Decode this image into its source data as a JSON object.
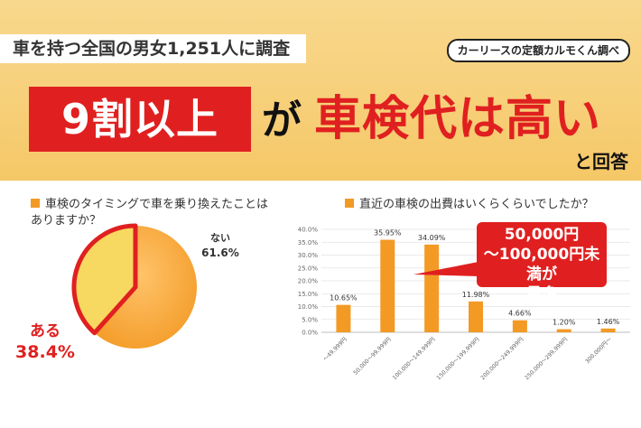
{
  "header": {
    "survey": "車を持つ全国の男女1,251人に調査",
    "source": "カーリースの定額カルモくん調べ",
    "headline_box": "9割以上",
    "headline_particle": "が",
    "headline_red": "車検代は高い",
    "headline_suffix": "と回答"
  },
  "colors": {
    "red": "#e02020",
    "orange": "#f39a25",
    "pie_yellow": "#f7d860",
    "banner": "#f7cf78"
  },
  "chart_data": [
    {
      "type": "pie",
      "title": "車検のタイミングで車を乗り換えたことはありますか？",
      "title_line1": "車検のタイミングで車を乗り換えたことは",
      "title_line2": "ありますか？",
      "slices": [
        {
          "label": "ない",
          "value": 61.6,
          "value_label": "61.6%"
        },
        {
          "label": "ある",
          "value": 38.4,
          "value_label": "38.4%"
        }
      ]
    },
    {
      "type": "bar",
      "title": "直近の車検の出費はいくらくらいでしたか？",
      "categories": [
        "～49,999円",
        "50,000～99,999円",
        "100,000～149,999円",
        "150,000～199,999円",
        "200,000～249,999円",
        "250,000～299,999円",
        "300,000円～"
      ],
      "values": [
        10.65,
        35.95,
        34.09,
        11.98,
        4.66,
        1.2,
        1.46
      ],
      "value_labels": [
        "10.65%",
        "35.95%",
        "34.09%",
        "11.98%",
        "4.66%",
        "1.20%",
        "1.46%"
      ],
      "ylim": [
        0,
        40
      ],
      "y_ticks": [
        "0.0%",
        "5.0%",
        "10.0%",
        "15.0%",
        "20.0%",
        "25.0%",
        "30.0%",
        "35.0%",
        "40.0%"
      ],
      "grid": true,
      "callout": {
        "line1": "50,000円",
        "line2": "～100,000円未満が",
        "line3": "最多"
      }
    }
  ]
}
